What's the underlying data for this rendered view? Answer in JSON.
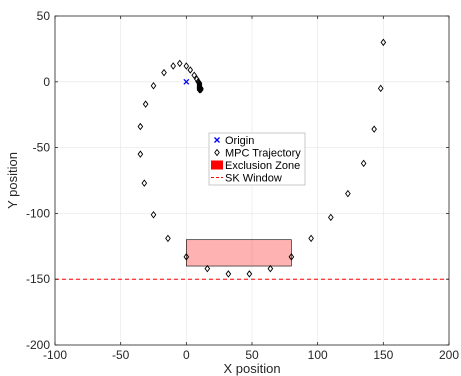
{
  "chart_data": {
    "type": "scatter",
    "title": "",
    "xlabel": "X position",
    "ylabel": "Y position",
    "xlim": [
      -100,
      200
    ],
    "ylim": [
      -200,
      50
    ],
    "xticks": [
      -100,
      -50,
      0,
      50,
      100,
      150,
      200
    ],
    "yticks": [
      -200,
      -150,
      -100,
      -50,
      0,
      50
    ],
    "xtick_labels": [
      "-100",
      "-50",
      "0",
      "50",
      "100",
      "150",
      "200"
    ],
    "ytick_labels": [
      "-200",
      "-150",
      "-100",
      "-50",
      "0",
      "50"
    ],
    "grid": true,
    "legend_position": "center",
    "legend": [
      {
        "label": "Origin",
        "marker": "x",
        "color": "#0000ff"
      },
      {
        "label": "MPC Trajectory",
        "marker": "diamond",
        "color": "#000000"
      },
      {
        "label": "Exclusion Zone",
        "marker": "rect",
        "color": "#ff0000"
      },
      {
        "label": "SK Window",
        "marker": "dashed-line",
        "color": "#ff0000"
      }
    ],
    "origin": {
      "x": 0,
      "y": 0
    },
    "trajectory": {
      "name": "MPC Trajectory",
      "x": [
        150,
        148,
        143,
        135,
        123,
        110,
        95,
        80,
        64,
        48,
        32,
        16,
        0,
        -14,
        -25,
        -32,
        -35,
        -35,
        -31,
        -25,
        -17,
        -10,
        -5,
        0,
        3,
        6,
        8,
        9,
        10,
        10,
        10,
        10,
        11,
        11,
        11,
        10,
        10,
        10
      ],
      "y": [
        30,
        -5,
        -36,
        -62,
        -85,
        -103,
        -119,
        -133,
        -142,
        -146,
        -146,
        -142,
        -133,
        -119,
        -101,
        -77,
        -55,
        -34,
        -17,
        -3,
        7,
        12,
        14,
        12,
        9,
        5,
        2,
        0,
        -1,
        -2,
        -3,
        -4,
        -5,
        -5,
        -6,
        -6,
        -5,
        -4
      ]
    },
    "exclusion_zone": {
      "x": [
        0,
        80
      ],
      "y": [
        -140,
        -120
      ],
      "fill": "#ff0000",
      "opacity": 0.3
    },
    "sk_window": {
      "y": -150,
      "color": "#ff0000",
      "style": "dashed"
    }
  }
}
